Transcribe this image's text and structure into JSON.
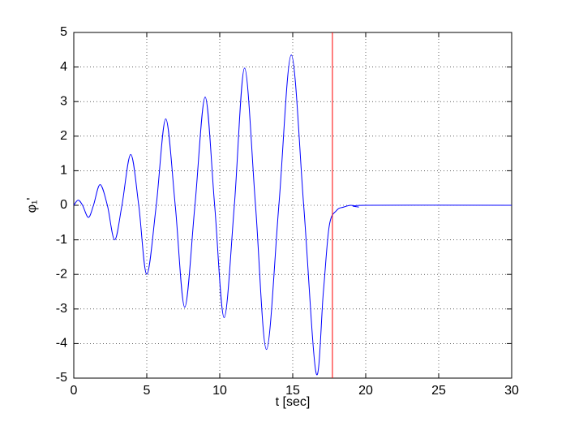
{
  "chart_data": {
    "type": "line",
    "xlabel": "t [sec]",
    "ylabel": "φ₁'",
    "x": [
      0,
      0.3,
      0.6,
      1.0,
      1.35,
      1.8,
      2.3,
      2.8,
      3.3,
      3.9,
      4.45,
      5.0,
      5.65,
      6.3,
      6.95,
      7.6,
      8.3,
      9.0,
      9.65,
      10.3,
      11.0,
      11.7,
      12.45,
      13.2,
      14.05,
      14.9,
      15.75,
      16.6,
      17.1,
      17.5,
      18,
      18.5,
      19,
      19.5,
      20,
      30
    ],
    "series": [
      {
        "name": "φ₁'",
        "color": "#0000ff",
        "values": [
          0,
          0.15,
          0,
          -0.35,
          0,
          0.6,
          0,
          -1.0,
          0,
          1.47,
          0,
          -2.0,
          0,
          2.5,
          0,
          -2.95,
          0,
          3.13,
          0,
          -3.25,
          0,
          3.97,
          0,
          -4.17,
          0,
          4.35,
          0,
          -4.85,
          -2.5,
          -0.6,
          -0.15,
          -0.05,
          0,
          -0.05,
          0,
          0
        ]
      }
    ],
    "vline": {
      "x": 17.72,
      "color": "#ff0000"
    },
    "xlim": [
      0,
      30
    ],
    "xticks": [
      0,
      5,
      10,
      15,
      20,
      25,
      30
    ],
    "ylim": [
      -5,
      5
    ],
    "yticks": [
      -5,
      -4,
      -3,
      -2,
      -1,
      0,
      1,
      2,
      3,
      4,
      5
    ],
    "grid": true
  }
}
